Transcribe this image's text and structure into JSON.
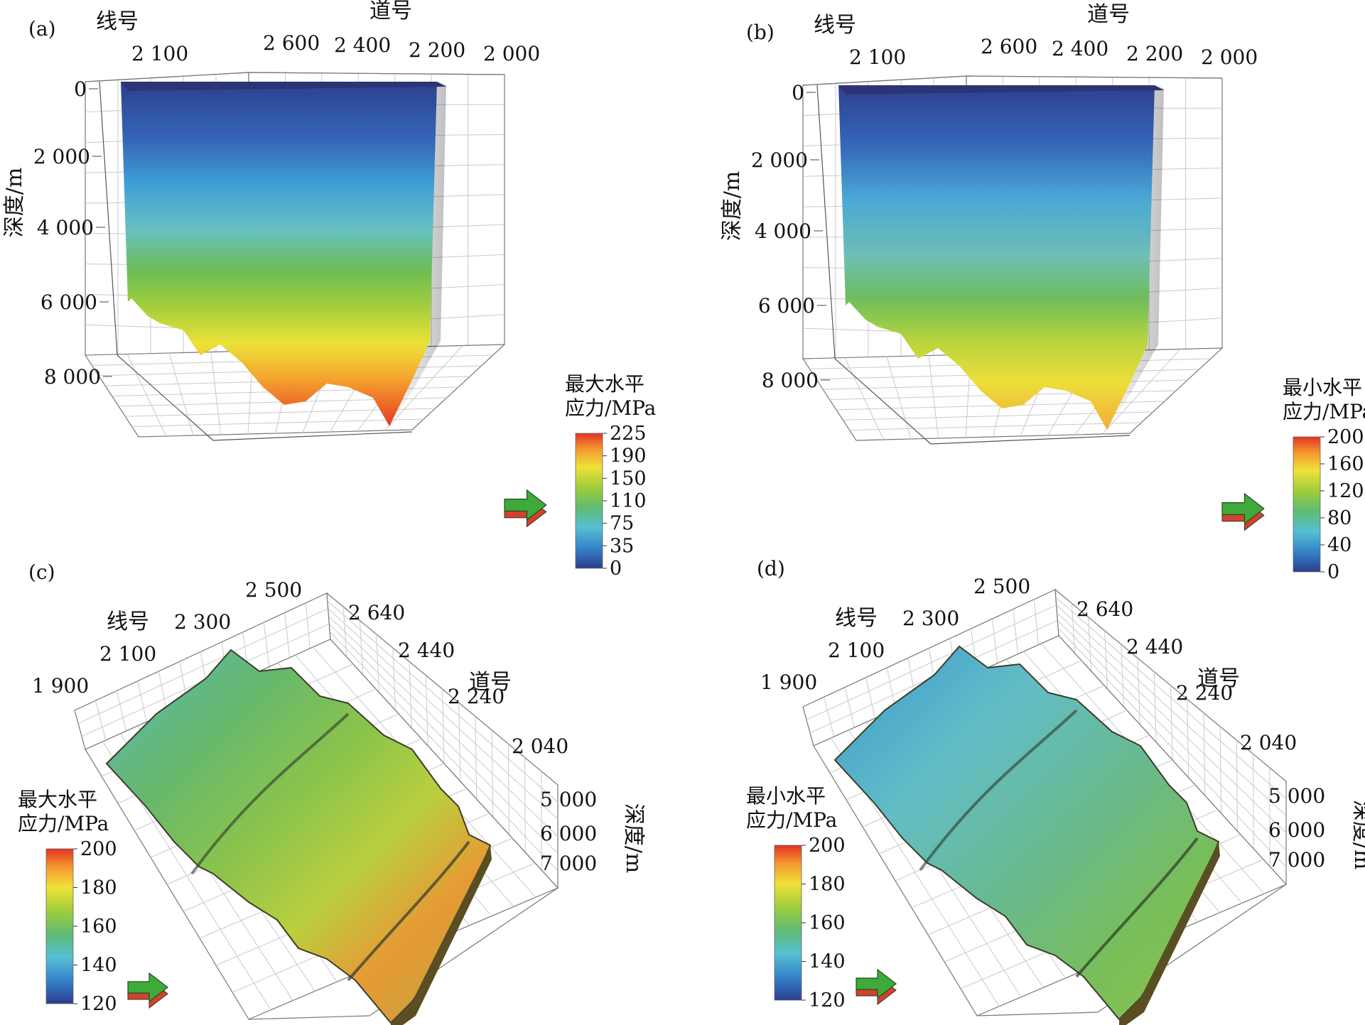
{
  "figure": "3D seismic stress volume visualization, four panels",
  "chart_data": [
    {
      "id": "a",
      "type": "heatmap",
      "label": "(a)",
      "view": "3d-volume",
      "xlabel": "线号",
      "ylabel": "道号",
      "zlabel": "深度/m",
      "line_ticks": [
        "2 100"
      ],
      "trace_ticks": [
        "2 600",
        "2 400",
        "2 200",
        "2 000"
      ],
      "depth_ticks": [
        "0",
        "2 000",
        "4 000",
        "6 000",
        "8 000"
      ],
      "depth_range": [
        0,
        9000
      ],
      "colorbar": {
        "title_lines": [
          "最大水平",
          "应力/MPa"
        ],
        "ticks": [
          "225",
          "190",
          "150",
          "110",
          "75",
          "35",
          "0"
        ],
        "range": [
          0,
          225
        ],
        "colormap": "jet",
        "placement": "bottom-right"
      },
      "grid": true
    },
    {
      "id": "b",
      "type": "heatmap",
      "label": "(b)",
      "view": "3d-volume",
      "xlabel": "线号",
      "ylabel": "道号",
      "zlabel": "深度/m",
      "line_ticks": [
        "2 100"
      ],
      "trace_ticks": [
        "2 600",
        "2 400",
        "2 200",
        "2 000"
      ],
      "depth_ticks": [
        "0",
        "2 000",
        "4 000",
        "6 000",
        "8 000"
      ],
      "depth_range": [
        0,
        9000
      ],
      "colorbar": {
        "title_lines": [
          "最小水平",
          "应力/MPa"
        ],
        "ticks": [
          "200",
          "160",
          "120",
          "80",
          "40",
          "0"
        ],
        "range": [
          0,
          200
        ],
        "colormap": "jet",
        "placement": "bottom-right"
      },
      "grid": true
    },
    {
      "id": "c",
      "type": "heatmap",
      "label": "(c)",
      "view": "3d-surface",
      "xlabel": "线号",
      "ylabel": "道号",
      "zlabel": "深度/m",
      "line_ticks": [
        "1 900",
        "2 100",
        "2 300",
        "2 500"
      ],
      "trace_ticks": [
        "2 640",
        "2 440",
        "2 240",
        "2 040"
      ],
      "depth_ticks": [
        "5 000",
        "6 000",
        "7 000"
      ],
      "colorbar": {
        "title_lines": [
          "最大水平",
          "应力/MPa"
        ],
        "ticks": [
          "200",
          "180",
          "160",
          "140",
          "120"
        ],
        "range": [
          120,
          200
        ],
        "colormap": "jet",
        "placement": "bottom-left"
      },
      "grid": true
    },
    {
      "id": "d",
      "type": "heatmap",
      "label": "(d)",
      "view": "3d-surface",
      "xlabel": "线号",
      "ylabel": "道号",
      "zlabel": "深度/m",
      "line_ticks": [
        "1 900",
        "2 100",
        "2 300",
        "2 500"
      ],
      "trace_ticks": [
        "2 640",
        "2 440",
        "2 240",
        "2 040"
      ],
      "depth_ticks": [
        "5 000",
        "6 000",
        "7 000"
      ],
      "colorbar": {
        "title_lines": [
          "最小水平",
          "应力/MPa"
        ],
        "ticks": [
          "200",
          "180",
          "160",
          "140",
          "120"
        ],
        "range": [
          120,
          200
        ],
        "colormap": "jet",
        "placement": "bottom-left"
      },
      "grid": true
    }
  ]
}
